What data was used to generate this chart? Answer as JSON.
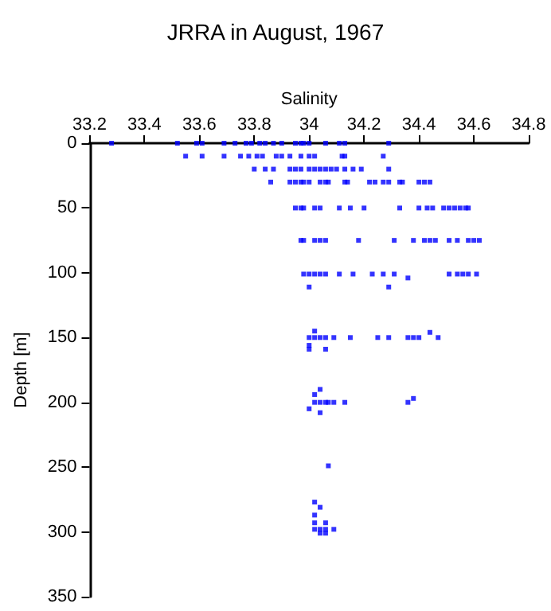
{
  "chart_data": {
    "type": "scatter",
    "title": "JRRA in August, 1967",
    "xlabel": "Salinity",
    "ylabel": "Depth [m]",
    "xlim": [
      33.2,
      34.8
    ],
    "xticks": [
      33.2,
      33.4,
      33.6,
      33.8,
      34,
      34.2,
      34.4,
      34.6,
      34.8
    ],
    "ylim": [
      350,
      0
    ],
    "yticks": [
      0,
      50,
      100,
      150,
      200,
      250,
      300,
      350
    ],
    "grid": false,
    "marker": "square",
    "series": [
      {
        "color": "#0000ff",
        "x": [
          33.28,
          33.52,
          33.59,
          33.61,
          33.69,
          33.73,
          33.77,
          33.79,
          33.82,
          33.84,
          33.87,
          33.9,
          33.95,
          33.97,
          33.98,
          34.0,
          34.06,
          34.11,
          34.13,
          34.29,
          33.55,
          33.61,
          33.69,
          33.75,
          33.78,
          33.81,
          33.83,
          33.88,
          33.9,
          33.93,
          33.97,
          34.0,
          34.02,
          34.12,
          34.13,
          34.27,
          33.8,
          33.84,
          33.87,
          33.93,
          33.95,
          33.97,
          34.0,
          34.02,
          34.04,
          34.06,
          34.08,
          34.1,
          34.13,
          34.16,
          34.19,
          34.29,
          33.86,
          33.93,
          33.95,
          33.97,
          33.98,
          34.0,
          34.04,
          34.06,
          34.07,
          34.13,
          34.14,
          34.22,
          34.24,
          34.27,
          34.29,
          34.33,
          34.34,
          34.4,
          34.42,
          34.44,
          33.95,
          33.97,
          33.98,
          34.02,
          34.04,
          34.11,
          34.15,
          34.2,
          34.33,
          34.4,
          34.43,
          34.45,
          34.49,
          34.51,
          34.53,
          34.55,
          34.57,
          34.58,
          33.97,
          33.98,
          34.02,
          34.04,
          34.06,
          34.18,
          34.31,
          34.38,
          34.42,
          34.44,
          34.46,
          34.51,
          34.54,
          34.58,
          34.6,
          34.62,
          33.98,
          34.0,
          34.02,
          34.04,
          34.06,
          34.11,
          34.16,
          34.23,
          34.27,
          34.31,
          34.36,
          34.51,
          34.54,
          34.56,
          34.58,
          34.61,
          34.0,
          34.29,
          34.0,
          34.02,
          34.04,
          34.06,
          34.09,
          34.15,
          34.25,
          34.29,
          34.36,
          34.38,
          34.4,
          34.47,
          34.02,
          34.44,
          34.0,
          34.0,
          34.06,
          34.02,
          34.04,
          34.06,
          34.07,
          34.09,
          34.13,
          34.36,
          34.38,
          34.04,
          34.02,
          34.0,
          34.04,
          34.07,
          34.02,
          34.04,
          34.02,
          34.02,
          34.06,
          34.02,
          34.04,
          34.06,
          34.09,
          34.04,
          34.06
        ],
        "values": [
          0,
          0,
          0,
          0,
          0,
          0,
          0,
          0,
          0,
          0,
          0,
          0,
          0,
          0,
          0,
          0,
          0,
          0,
          0,
          0,
          10,
          10,
          10,
          10,
          10,
          10,
          10,
          10,
          10,
          10,
          10,
          10,
          10,
          10,
          10,
          10,
          20,
          20,
          20,
          20,
          20,
          20,
          20,
          20,
          20,
          20,
          20,
          20,
          20,
          20,
          20,
          20,
          30,
          30,
          30,
          30,
          30,
          30,
          30,
          30,
          30,
          30,
          30,
          30,
          30,
          30,
          30,
          30,
          30,
          30,
          30,
          30,
          50,
          50,
          50,
          50,
          50,
          50,
          50,
          50,
          50,
          50,
          50,
          50,
          50,
          50,
          50,
          50,
          50,
          50,
          75,
          75,
          75,
          75,
          75,
          75,
          75,
          75,
          75,
          75,
          75,
          75,
          75,
          75,
          75,
          75,
          101,
          101,
          101,
          101,
          101,
          101,
          101,
          101,
          101,
          101,
          104,
          101,
          101,
          101,
          101,
          101,
          111,
          111,
          150,
          150,
          150,
          150,
          150,
          150,
          150,
          150,
          150,
          150,
          150,
          150,
          145,
          146,
          156,
          159,
          159,
          200,
          200,
          200,
          200,
          200,
          200,
          200,
          197,
          190,
          194,
          205,
          208,
          249,
          277,
          281,
          287,
          293,
          293,
          298,
          298,
          298,
          298,
          301,
          301
        ]
      }
    ]
  }
}
